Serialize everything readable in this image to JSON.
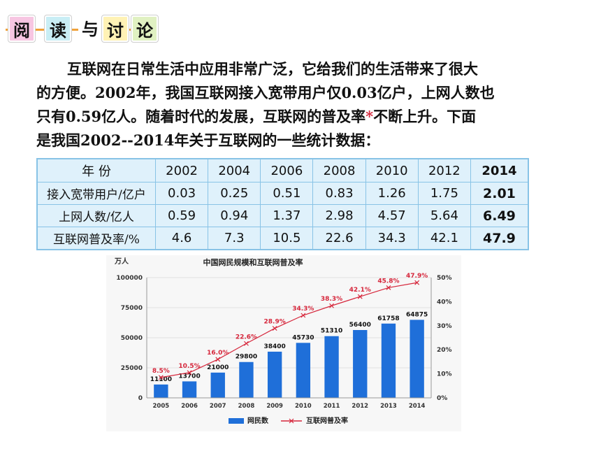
{
  "header": {
    "chars": [
      "阅",
      "读",
      "与",
      "讨",
      "论"
    ]
  },
  "paragraph": {
    "line1": "互联网在日常生活中应用非常广泛，它给我们的生活带来了很大",
    "line2": "的方便。2002年，我国互联网接入宽带用户仅0.03亿户，上网人数也",
    "line3a": "只有0.59亿人。随着时代的发展，互联网的普及率",
    "star": "*",
    "line3b": "不断上升。下面",
    "line4": "是我国2002--2014年关于互联网的一些统计数据："
  },
  "table": {
    "header_label": "年 份",
    "years": [
      "2002",
      "2004",
      "2006",
      "2008",
      "2010",
      "2012",
      "2014"
    ],
    "rows": [
      {
        "label": "接入宽带用户/亿户",
        "values": [
          "0.03",
          "0.25",
          "0.51",
          "0.83",
          "1.26",
          "1.75",
          "2.01"
        ]
      },
      {
        "label": "上网人数/亿人",
        "values": [
          "0.59",
          "0.94",
          "1.37",
          "2.98",
          "4.57",
          "5.64",
          "6.49"
        ]
      },
      {
        "label": "互联网普及率/%",
        "values": [
          "4.6",
          "7.3",
          "10.5",
          "22.6",
          "34.3",
          "42.1",
          "47.9"
        ]
      }
    ]
  },
  "chart_data": {
    "type": "bar",
    "title": "中国网民规模和互联网普及率",
    "ylabel": "万人",
    "categories": [
      "2005",
      "2006",
      "2007",
      "2008",
      "2009",
      "2010",
      "2011",
      "2012",
      "2013",
      "2014"
    ],
    "ylim": [
      0,
      100000
    ],
    "yticks": [
      "100000",
      "75000",
      "50000",
      "25000",
      "0"
    ],
    "y2lim": [
      0,
      50
    ],
    "y2ticks": [
      "50%",
      "40%",
      "30%",
      "20%",
      "10%",
      "0%"
    ],
    "series": [
      {
        "name": "网民数",
        "type": "bar",
        "color": "#1f6fd9",
        "values": [
          11100,
          13700,
          21000,
          29800,
          38400,
          45730,
          51310,
          56400,
          61758,
          64875
        ],
        "labels": [
          "11100",
          "13700",
          "21000",
          "29800",
          "38400",
          "45730",
          "51310",
          "56400",
          "61758",
          "64875"
        ]
      },
      {
        "name": "互联网普及率",
        "type": "line",
        "color": "#d6263b",
        "values": [
          8.5,
          10.5,
          16.0,
          22.6,
          28.9,
          34.3,
          38.3,
          42.1,
          45.8,
          47.9
        ],
        "labels": [
          "8.5%",
          "10.5%",
          "16.0%",
          "22.6%",
          "28.9%",
          "34.3%",
          "38.3%",
          "42.1%",
          "45.8%",
          "47.9%"
        ]
      }
    ],
    "legend": "bottom"
  }
}
